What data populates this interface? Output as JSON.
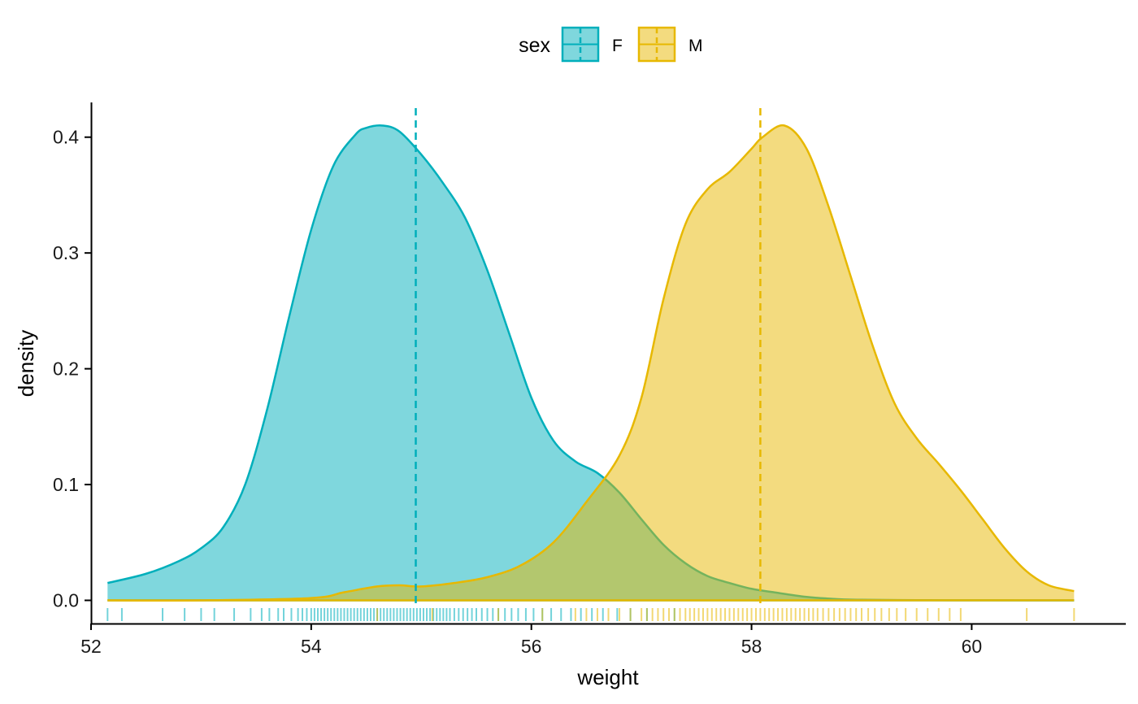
{
  "chart_data": {
    "type": "area",
    "xlabel": "weight",
    "ylabel": "density",
    "xlim": [
      52,
      61.4
    ],
    "ylim": [
      -0.02,
      0.43
    ],
    "xticks": [
      52,
      54,
      56,
      58,
      60
    ],
    "yticks": [
      0.0,
      0.1,
      0.2,
      0.3,
      0.4
    ],
    "xtick_labels": [
      "52",
      "54",
      "56",
      "58",
      "60"
    ],
    "ytick_labels": [
      "0.0",
      "0.1",
      "0.2",
      "0.3",
      "0.4"
    ],
    "grid": false,
    "legend": {
      "title": "sex",
      "position": "top",
      "entries": [
        "F",
        "M"
      ]
    },
    "series": [
      {
        "name": "F",
        "color": "#00AFBB",
        "fill": "#00AFBB",
        "mean": 54.95,
        "x": [
          52.15,
          52.5,
          52.8,
          53.0,
          53.2,
          53.4,
          53.6,
          53.8,
          54.0,
          54.2,
          54.4,
          54.5,
          54.65,
          54.8,
          55.0,
          55.2,
          55.4,
          55.6,
          55.8,
          56.0,
          56.2,
          56.4,
          56.6,
          56.8,
          57.0,
          57.2,
          57.4,
          57.6,
          57.8,
          58.0,
          58.2,
          58.5,
          58.8,
          59.0,
          59.5,
          60.0,
          60.5,
          60.93
        ],
        "y": [
          0.015,
          0.023,
          0.034,
          0.045,
          0.063,
          0.1,
          0.165,
          0.245,
          0.32,
          0.375,
          0.402,
          0.408,
          0.41,
          0.405,
          0.385,
          0.36,
          0.33,
          0.285,
          0.23,
          0.175,
          0.138,
          0.12,
          0.11,
          0.093,
          0.07,
          0.048,
          0.032,
          0.021,
          0.015,
          0.01,
          0.007,
          0.003,
          0.001,
          0.0005,
          0.0002,
          0.0001,
          0.0,
          0.0
        ]
      },
      {
        "name": "M",
        "color": "#E7B800",
        "fill": "#E7B800",
        "mean": 58.08,
        "x": [
          52.15,
          53.0,
          54.0,
          54.3,
          54.6,
          54.8,
          55.0,
          55.3,
          55.6,
          55.9,
          56.2,
          56.5,
          56.8,
          57.0,
          57.2,
          57.4,
          57.6,
          57.8,
          58.0,
          58.1,
          58.3,
          58.5,
          58.7,
          58.9,
          59.1,
          59.3,
          59.5,
          59.7,
          59.9,
          60.1,
          60.3,
          60.5,
          60.7,
          60.93
        ],
        "y": [
          0.0,
          0.0,
          0.002,
          0.007,
          0.012,
          0.013,
          0.012,
          0.015,
          0.02,
          0.03,
          0.05,
          0.085,
          0.125,
          0.175,
          0.26,
          0.325,
          0.355,
          0.37,
          0.39,
          0.4,
          0.41,
          0.39,
          0.34,
          0.28,
          0.22,
          0.17,
          0.14,
          0.118,
          0.095,
          0.07,
          0.045,
          0.025,
          0.013,
          0.008
        ]
      }
    ],
    "rug": {
      "F": [
        52.15,
        52.28,
        52.65,
        52.85,
        53.0,
        53.12,
        53.3,
        53.45,
        53.55,
        53.62,
        53.7,
        53.75,
        53.82,
        53.88,
        53.92,
        53.96,
        54.0,
        54.03,
        54.06,
        54.09,
        54.12,
        54.15,
        54.18,
        54.21,
        54.24,
        54.27,
        54.3,
        54.33,
        54.36,
        54.39,
        54.42,
        54.45,
        54.48,
        54.51,
        54.54,
        54.57,
        54.6,
        54.63,
        54.66,
        54.69,
        54.72,
        54.75,
        54.78,
        54.81,
        54.84,
        54.87,
        54.9,
        54.93,
        54.96,
        54.99,
        55.02,
        55.05,
        55.08,
        55.11,
        55.14,
        55.17,
        55.2,
        55.23,
        55.26,
        55.3,
        55.34,
        55.38,
        55.42,
        55.46,
        55.5,
        55.55,
        55.6,
        55.65,
        55.7,
        55.76,
        55.82,
        55.88,
        55.95,
        56.02,
        56.1,
        56.18,
        56.27,
        56.36,
        56.45,
        56.55,
        56.65,
        56.78,
        56.9,
        57.05,
        57.3
      ],
      "M": [
        54.6,
        55.1,
        55.7,
        56.1,
        56.4,
        56.5,
        56.6,
        56.7,
        56.8,
        56.9,
        57.0,
        57.05,
        57.1,
        57.15,
        57.2,
        57.25,
        57.3,
        57.35,
        57.4,
        57.44,
        57.48,
        57.52,
        57.56,
        57.6,
        57.64,
        57.68,
        57.72,
        57.76,
        57.8,
        57.84,
        57.88,
        57.92,
        57.96,
        58.0,
        58.04,
        58.08,
        58.12,
        58.16,
        58.2,
        58.24,
        58.28,
        58.32,
        58.36,
        58.4,
        58.44,
        58.48,
        58.52,
        58.56,
        58.6,
        58.65,
        58.7,
        58.75,
        58.8,
        58.85,
        58.9,
        58.95,
        59.0,
        59.06,
        59.12,
        59.18,
        59.25,
        59.32,
        59.4,
        59.5,
        59.6,
        59.7,
        59.8,
        59.9,
        60.5,
        60.93
      ]
    }
  }
}
